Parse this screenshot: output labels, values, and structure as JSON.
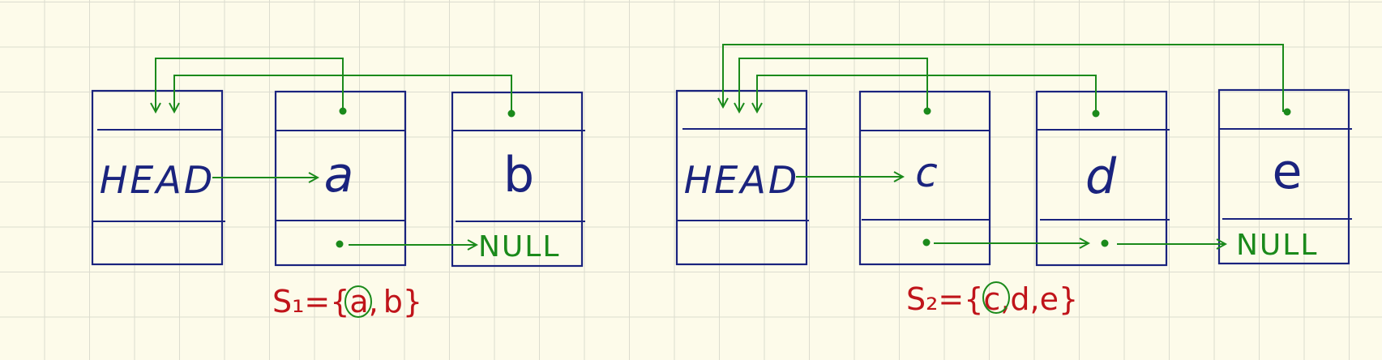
{
  "colors": {
    "background": "#fdfbea",
    "grid": "#dcdccf",
    "node": "#1a237e",
    "pointer": "#1b8a1b",
    "set_label": "#c0141a"
  },
  "list1": {
    "head_label": "HEAD",
    "nodes": [
      "a",
      "b"
    ],
    "terminator": "NULL",
    "set_label": "S₁={a,b}",
    "set_name": "S₁",
    "set_open": "={",
    "set_items": [
      "a",
      "b"
    ],
    "set_close": "}",
    "representative": "a"
  },
  "list2": {
    "head_label": "HEAD",
    "nodes": [
      "c",
      "d",
      "e"
    ],
    "terminator": "NULL",
    "set_label": "S₂={c,d,e}",
    "set_name": "S₂",
    "set_open": "={",
    "set_items": [
      "c",
      "d",
      "e"
    ],
    "set_close": "}",
    "representative": "c"
  }
}
